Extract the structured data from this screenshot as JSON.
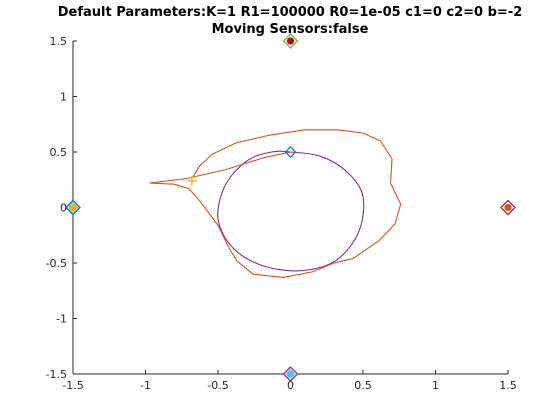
{
  "chart_data": {
    "type": "line",
    "title": "Default Parameters:K=1 R1=100000 R0=1e-05 c1=0 c2=0 b=-2",
    "subtitle": "Moving Sensors:false",
    "xlim": [
      -1.5,
      1.5
    ],
    "ylim": [
      -1.5,
      1.5
    ],
    "xticks": [
      -1.5,
      -1,
      -0.5,
      0,
      0.5,
      1,
      1.5
    ],
    "yticks": [
      -1.5,
      -1,
      -0.5,
      0,
      0.5,
      1,
      1.5
    ],
    "xtick_labels": [
      "-1.5",
      "-1",
      "-0.5",
      "0",
      "0.5",
      "1",
      "1.5"
    ],
    "ytick_labels": [
      "-1.5",
      "-1",
      "-0.5",
      "0",
      "0.5",
      "1",
      "1.5"
    ],
    "grid": false,
    "series": [
      {
        "color": "#7e2f8e",
        "kind": "reference-ellipse",
        "points": [
          [
            0.0,
            0.5
          ],
          [
            0.21,
            0.46
          ],
          [
            0.39,
            0.32
          ],
          [
            0.5,
            0.1
          ],
          [
            0.47,
            -0.22
          ],
          [
            0.31,
            -0.48
          ],
          [
            0.06,
            -0.57
          ],
          [
            -0.2,
            -0.52
          ],
          [
            -0.4,
            -0.36
          ],
          [
            -0.5,
            -0.1
          ],
          [
            -0.45,
            0.2
          ],
          [
            -0.3,
            0.42
          ],
          [
            -0.13,
            0.5
          ],
          [
            0.0,
            0.5
          ]
        ]
      },
      {
        "color": "#d95319",
        "kind": "estimated-trajectory",
        "points": [
          [
            0.0,
            0.5
          ],
          [
            -0.18,
            0.45
          ],
          [
            -0.45,
            0.34
          ],
          [
            -0.72,
            0.26
          ],
          [
            -0.97,
            0.22
          ],
          [
            -0.8,
            0.21
          ],
          [
            -0.7,
            0.17
          ],
          [
            -0.62,
            0.05
          ],
          [
            -0.5,
            -0.16
          ],
          [
            -0.43,
            -0.35
          ],
          [
            -0.37,
            -0.48
          ],
          [
            -0.26,
            -0.6
          ],
          [
            -0.05,
            -0.63
          ],
          [
            0.15,
            -0.58
          ],
          [
            0.3,
            -0.5
          ],
          [
            0.43,
            -0.46
          ],
          [
            0.61,
            -0.3
          ],
          [
            0.72,
            -0.15
          ],
          [
            0.76,
            0.03
          ],
          [
            0.69,
            0.22
          ],
          [
            0.7,
            0.44
          ],
          [
            0.62,
            0.6
          ],
          [
            0.5,
            0.67
          ],
          [
            0.33,
            0.7
          ],
          [
            0.1,
            0.7
          ],
          [
            -0.15,
            0.65
          ],
          [
            -0.38,
            0.58
          ],
          [
            -0.54,
            0.48
          ],
          [
            -0.63,
            0.37
          ],
          [
            -0.67,
            0.28
          ]
        ]
      }
    ],
    "markers": [
      {
        "x": 0.0,
        "y": 0.5,
        "shape": "diamond",
        "color": "#0072bd",
        "fill": "none",
        "size": "small"
      },
      {
        "x": -0.68,
        "y": 0.24,
        "shape": "plus",
        "color": "#edb120"
      },
      {
        "x": -1.5,
        "y": 0.0,
        "shape": "diamond",
        "color": "#0072bd",
        "fill": "#9ecae1",
        "dot": "#edb120"
      },
      {
        "x": 0.0,
        "y": 1.5,
        "shape": "diamond",
        "color": "#77ac30",
        "fill": "#eaf2dc",
        "dot": "#a2142f"
      },
      {
        "x": 1.5,
        "y": 0.0,
        "shape": "diamond",
        "color": "#a2142f",
        "fill": "#ffffff",
        "dot": "#d95319"
      },
      {
        "x": 0.0,
        "y": -1.5,
        "shape": "diamond",
        "color": "#7e2f8e",
        "fill": "#d9cfe8",
        "dot": "#4dbeee"
      }
    ]
  }
}
